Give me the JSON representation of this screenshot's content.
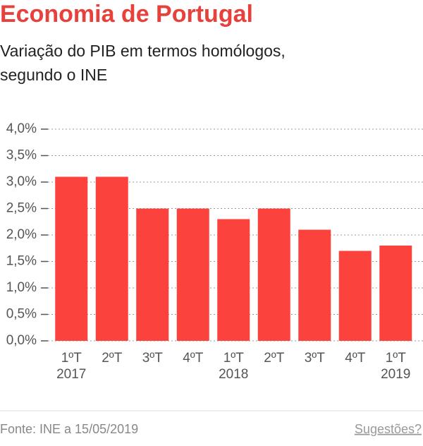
{
  "chart_data": {
    "type": "bar",
    "title": "Economia de Portugal",
    "subtitle_lines": [
      "Variação do PIB em termos homólogos,",
      "segundo o INE"
    ],
    "categories": [
      "1ºT",
      "2ºT",
      "3ºT",
      "4ºT",
      "1ºT",
      "2ºT",
      "3ºT",
      "4ºT",
      "1ºT"
    ],
    "category_years": [
      "2017",
      null,
      null,
      null,
      "2018",
      null,
      null,
      null,
      "2019"
    ],
    "values": [
      3.1,
      3.1,
      2.5,
      2.5,
      2.3,
      2.5,
      2.1,
      1.7,
      1.8
    ],
    "color": "#fc423d",
    "ylim": [
      0,
      4
    ],
    "yticks": [
      {
        "value": 0,
        "label": "0,0%"
      },
      {
        "value": 0.5,
        "label": "0,5%"
      },
      {
        "value": 1,
        "label": "1,0%"
      },
      {
        "value": 1.5,
        "label": "1,5%"
      },
      {
        "value": 2,
        "label": "2,0%"
      },
      {
        "value": 2.5,
        "label": "2,5%"
      },
      {
        "value": 3,
        "label": "3,0%"
      },
      {
        "value": 3.5,
        "label": "3,5%"
      },
      {
        "value": 4,
        "label": "4,0%"
      }
    ],
    "grid": true,
    "source": "Fonte: INE a 15/05/2019",
    "feedback_link": "Sugestões?"
  }
}
